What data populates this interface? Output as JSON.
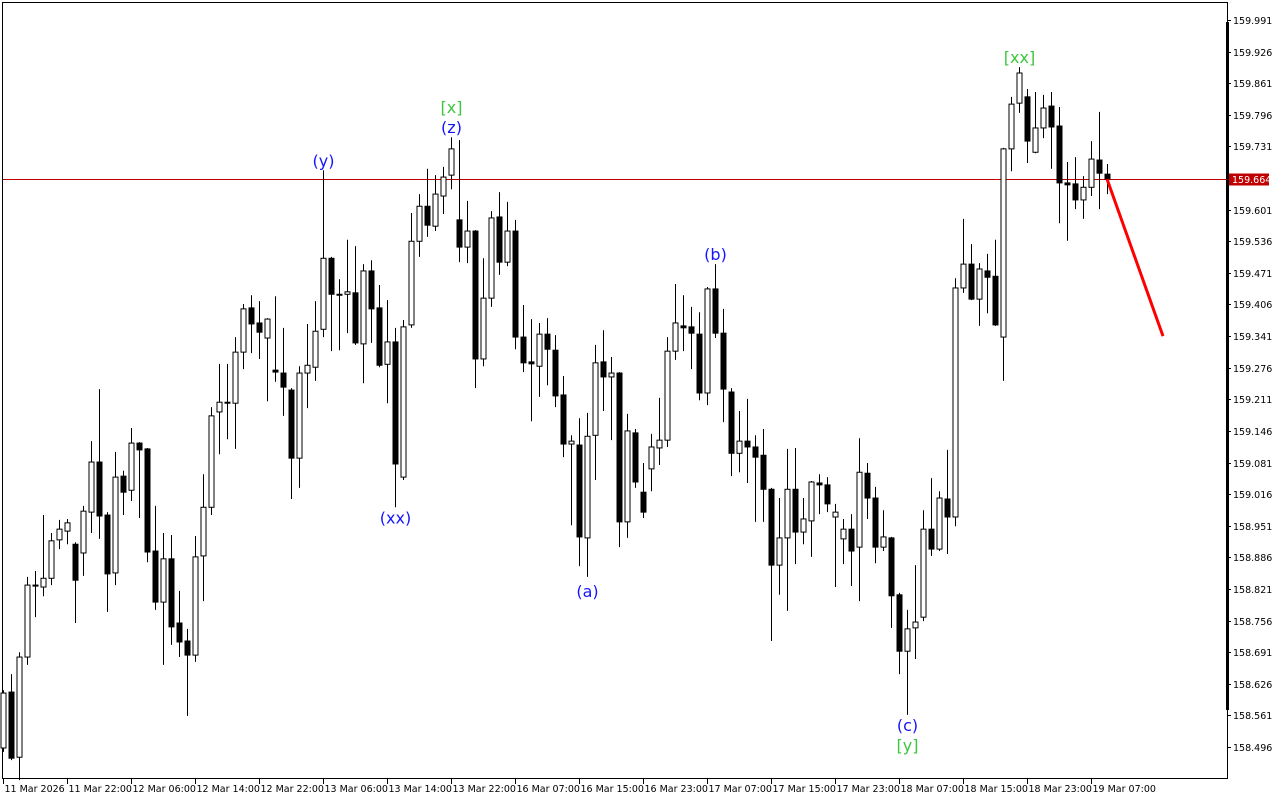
{
  "chart_data": {
    "type": "candlestick",
    "title": "",
    "price_axis": {
      "ticks": [
        "159.991",
        "159.926",
        "159.861",
        "159.796",
        "159.731",
        "159.666",
        "159.601",
        "159.536",
        "159.471",
        "159.406",
        "159.341",
        "159.276",
        "159.211",
        "159.146",
        "159.081",
        "159.016",
        "158.951",
        "158.886",
        "158.821",
        "158.756",
        "158.691",
        "158.626",
        "158.561",
        "158.496"
      ],
      "hidden_tick": "159.666",
      "range": [
        158.45,
        160.03
      ]
    },
    "current_price": {
      "value": 159.664,
      "label": "159.664",
      "color": "#c00000"
    },
    "time_axis": {
      "labels": [
        "11 Mar 2026",
        "11 Mar 22:00",
        "12 Mar 06:00",
        "12 Mar 14:00",
        "12 Mar 22:00",
        "13 Mar 06:00",
        "13 Mar 14:00",
        "13 Mar 22:00",
        "16 Mar 07:00",
        "16 Mar 15:00",
        "16 Mar 23:00",
        "17 Mar 07:00",
        "17 Mar 15:00",
        "17 Mar 23:00",
        "18 Mar 07:00",
        "18 Mar 15:00",
        "18 Mar 23:00",
        "19 Mar 07:00"
      ]
    },
    "colors": {
      "bull_body": "#ffffff",
      "bear_body": "#000000",
      "outline": "#000000",
      "wave_minor": "#1414ff",
      "wave_major": "#3cc83c",
      "forecast": "#ff0000"
    },
    "candles_ohlc": [
      [
        158.494,
        158.613,
        158.486,
        158.607
      ],
      [
        158.609,
        158.646,
        158.469,
        158.473
      ],
      [
        158.475,
        158.691,
        158.428,
        158.681
      ],
      [
        158.681,
        158.846,
        158.665,
        158.829
      ],
      [
        158.829,
        158.858,
        158.763,
        158.827
      ],
      [
        158.825,
        158.973,
        158.806,
        158.843
      ],
      [
        158.843,
        158.936,
        158.829,
        158.92
      ],
      [
        158.922,
        158.963,
        158.903,
        158.944
      ],
      [
        158.94,
        158.965,
        158.913,
        158.957
      ],
      [
        158.913,
        158.917,
        158.751,
        158.839
      ],
      [
        158.895,
        158.992,
        158.848,
        158.981
      ],
      [
        158.979,
        159.125,
        158.936,
        159.082
      ],
      [
        159.082,
        159.232,
        158.924,
        158.971
      ],
      [
        158.973,
        158.979,
        158.774,
        158.852
      ],
      [
        158.854,
        159.103,
        158.829,
        159.051
      ],
      [
        159.053,
        159.064,
        158.973,
        159.02
      ],
      [
        159.024,
        159.152,
        159.002,
        159.121
      ],
      [
        159.121,
        159.123,
        158.967,
        159.107
      ],
      [
        159.109,
        159.111,
        158.876,
        158.897
      ],
      [
        158.899,
        158.992,
        158.778,
        158.794
      ],
      [
        158.794,
        158.936,
        158.665,
        158.883
      ],
      [
        158.883,
        158.932,
        158.706,
        158.743
      ],
      [
        158.751,
        158.817,
        158.681,
        158.712
      ],
      [
        158.714,
        158.739,
        158.56,
        158.685
      ],
      [
        158.685,
        158.93,
        158.671,
        158.887
      ],
      [
        158.889,
        159.057,
        158.796,
        158.989
      ],
      [
        158.989,
        159.195,
        158.973,
        159.177
      ],
      [
        159.185,
        159.284,
        159.098,
        159.205
      ],
      [
        159.205,
        159.284,
        159.129,
        159.203
      ],
      [
        159.203,
        159.339,
        159.109,
        159.308
      ],
      [
        159.308,
        159.407,
        159.273,
        159.397
      ],
      [
        159.399,
        159.425,
        159.306,
        159.366
      ],
      [
        159.368,
        159.413,
        159.294,
        159.349
      ],
      [
        159.337,
        159.378,
        159.207,
        159.376
      ],
      [
        159.271,
        159.423,
        159.247,
        159.267
      ],
      [
        159.265,
        159.358,
        159.177,
        159.236
      ],
      [
        159.23,
        159.234,
        159.006,
        159.09
      ],
      [
        159.09,
        159.279,
        159.029,
        159.265
      ],
      [
        159.265,
        159.366,
        159.193,
        159.281
      ],
      [
        159.277,
        159.413,
        159.249,
        159.351
      ],
      [
        159.355,
        159.682,
        159.339,
        159.501
      ],
      [
        159.501,
        159.504,
        159.31,
        159.427
      ],
      [
        159.427,
        159.458,
        159.312,
        159.425
      ],
      [
        159.427,
        159.539,
        159.347,
        159.432
      ],
      [
        159.43,
        159.526,
        159.323,
        159.327
      ],
      [
        159.325,
        159.489,
        159.244,
        159.475
      ],
      [
        159.475,
        159.497,
        159.327,
        159.397
      ],
      [
        159.399,
        159.446,
        159.277,
        159.281
      ],
      [
        159.283,
        159.415,
        159.203,
        159.329
      ],
      [
        159.329,
        159.358,
        158.989,
        159.078
      ],
      [
        159.051,
        159.374,
        159.045,
        159.36
      ],
      [
        159.364,
        159.594,
        159.358,
        159.536
      ],
      [
        159.536,
        159.633,
        159.504,
        159.608
      ],
      [
        159.608,
        159.685,
        159.545,
        159.569
      ],
      [
        159.567,
        159.672,
        159.557,
        159.633
      ],
      [
        159.629,
        159.689,
        159.592,
        159.668
      ],
      [
        159.672,
        159.75,
        159.643,
        159.726
      ],
      [
        159.58,
        159.744,
        159.493,
        159.524
      ],
      [
        159.524,
        159.619,
        159.491,
        159.557
      ],
      [
        159.557,
        159.559,
        159.234,
        159.294
      ],
      [
        159.294,
        159.501,
        159.279,
        159.419
      ],
      [
        159.419,
        159.598,
        159.401,
        159.584
      ],
      [
        159.586,
        159.637,
        159.467,
        159.493
      ],
      [
        159.493,
        159.617,
        159.485,
        159.557
      ],
      [
        159.557,
        159.58,
        159.314,
        159.339
      ],
      [
        159.339,
        159.405,
        159.267,
        159.286
      ],
      [
        159.288,
        159.376,
        159.166,
        159.284
      ],
      [
        159.279,
        159.368,
        159.216,
        159.345
      ],
      [
        159.345,
        159.378,
        159.24,
        159.314
      ],
      [
        159.312,
        159.343,
        159.195,
        159.218
      ],
      [
        159.22,
        159.259,
        159.092,
        159.119
      ],
      [
        159.119,
        159.137,
        158.952,
        159.125
      ],
      [
        159.117,
        159.172,
        158.868,
        158.928
      ],
      [
        158.926,
        159.183,
        158.846,
        159.135
      ],
      [
        159.137,
        159.323,
        159.045,
        159.286
      ],
      [
        159.288,
        159.353,
        159.187,
        159.257
      ],
      [
        159.257,
        159.298,
        159.127,
        159.265
      ],
      [
        159.265,
        159.267,
        158.907,
        158.959
      ],
      [
        158.959,
        159.181,
        158.926,
        159.146
      ],
      [
        159.142,
        159.15,
        159.029,
        159.041
      ],
      [
        159.02,
        159.08,
        158.967,
        158.979
      ],
      [
        159.068,
        159.14,
        159.022,
        159.113
      ],
      [
        159.111,
        159.214,
        159.076,
        159.127
      ],
      [
        159.127,
        159.339,
        159.113,
        159.31
      ],
      [
        159.31,
        159.448,
        159.292,
        159.368
      ],
      [
        159.362,
        159.425,
        159.31,
        159.358
      ],
      [
        159.36,
        159.401,
        159.273,
        159.347
      ],
      [
        159.345,
        159.39,
        159.209,
        159.224
      ],
      [
        159.224,
        159.442,
        159.199,
        159.438
      ],
      [
        159.438,
        159.489,
        159.337,
        159.347
      ],
      [
        159.347,
        159.397,
        159.164,
        159.232
      ],
      [
        159.226,
        159.234,
        159.053,
        159.1
      ],
      [
        159.1,
        159.187,
        159.061,
        159.125
      ],
      [
        159.125,
        159.212,
        159.039,
        159.113
      ],
      [
        159.113,
        159.137,
        158.959,
        159.092
      ],
      [
        159.096,
        159.15,
        158.959,
        159.026
      ],
      [
        159.026,
        159.029,
        158.714,
        158.87
      ],
      [
        158.87,
        159.008,
        158.809,
        158.926
      ],
      [
        158.926,
        159.109,
        158.776,
        159.026
      ],
      [
        159.026,
        159.111,
        158.872,
        158.938
      ],
      [
        158.938,
        159.008,
        158.913,
        158.965
      ],
      [
        158.961,
        159.043,
        158.887,
        159.041
      ],
      [
        159.039,
        159.057,
        158.975,
        159.035
      ],
      [
        159.035,
        159.051,
        158.979,
        158.996
      ],
      [
        158.969,
        158.996,
        158.825,
        158.979
      ],
      [
        158.924,
        158.965,
        158.872,
        158.944
      ],
      [
        158.944,
        158.975,
        158.827,
        158.899
      ],
      [
        158.907,
        159.131,
        158.796,
        159.061
      ],
      [
        159.059,
        159.08,
        158.965,
        159.008
      ],
      [
        159.008,
        159.031,
        158.874,
        158.907
      ],
      [
        158.907,
        158.983,
        158.899,
        158.928
      ],
      [
        158.926,
        158.928,
        158.741,
        158.807
      ],
      [
        158.809,
        158.813,
        158.646,
        158.693
      ],
      [
        158.693,
        158.778,
        158.562,
        158.739
      ],
      [
        158.741,
        158.87,
        158.677,
        158.753
      ],
      [
        158.763,
        158.983,
        158.755,
        158.944
      ],
      [
        158.944,
        159.049,
        158.889,
        158.903
      ],
      [
        158.903,
        159.022,
        158.899,
        159.008
      ],
      [
        159.006,
        159.107,
        158.893,
        158.969
      ],
      [
        158.969,
        159.46,
        158.95,
        159.44
      ],
      [
        159.44,
        159.582,
        159.43,
        159.489
      ],
      [
        159.489,
        159.53,
        159.415,
        159.417
      ],
      [
        159.417,
        159.491,
        159.362,
        159.479
      ],
      [
        159.475,
        159.51,
        159.388,
        159.462
      ],
      [
        159.464,
        159.539,
        159.362,
        159.364
      ],
      [
        159.339,
        159.728,
        159.249,
        159.726
      ],
      [
        159.726,
        159.833,
        159.68,
        159.818
      ],
      [
        159.82,
        159.894,
        159.8,
        159.882
      ],
      [
        159.833,
        159.849,
        159.697,
        159.742
      ],
      [
        159.719,
        159.843,
        159.717,
        159.769
      ],
      [
        159.769,
        159.837,
        159.748,
        159.81
      ],
      [
        159.814,
        159.843,
        159.685,
        159.771
      ],
      [
        159.773,
        159.812,
        159.573,
        159.656
      ],
      [
        159.656,
        159.699,
        159.537,
        159.652
      ],
      [
        159.654,
        159.709,
        159.602,
        159.621
      ],
      [
        159.621,
        159.67,
        159.582,
        159.647
      ],
      [
        159.647,
        159.742,
        159.629,
        159.705
      ],
      [
        159.703,
        159.802,
        159.602,
        159.676
      ],
      [
        159.674,
        159.695,
        159.633,
        159.664
      ]
    ],
    "annotations": [
      {
        "text": "[x]",
        "candle": 56,
        "position": "above",
        "stack": 1,
        "kind": "major"
      },
      {
        "text": "(z)",
        "candle": 56,
        "position": "above",
        "stack": 0,
        "kind": "minor"
      },
      {
        "text": "(y)",
        "candle": 40,
        "position": "above",
        "stack": 0,
        "kind": "minor"
      },
      {
        "text": "(xx)",
        "candle": 49,
        "position": "below",
        "stack": 0,
        "kind": "minor"
      },
      {
        "text": "(a)",
        "candle": 73,
        "position": "below",
        "stack": 0,
        "kind": "minor"
      },
      {
        "text": "(b)",
        "candle": 89,
        "position": "above",
        "stack": 0,
        "kind": "minor"
      },
      {
        "text": "(c)",
        "candle": 113,
        "position": "below",
        "stack": 0,
        "kind": "minor"
      },
      {
        "text": "[y]",
        "candle": 113,
        "position": "below",
        "stack": 1,
        "kind": "major"
      },
      {
        "text": "[xx]",
        "candle": 127,
        "position": "above",
        "stack": 0,
        "kind": "major"
      }
    ],
    "forecast": {
      "from_candle": 138,
      "from_price": 159.664,
      "to_candle": 145,
      "to_price": 159.341
    }
  }
}
